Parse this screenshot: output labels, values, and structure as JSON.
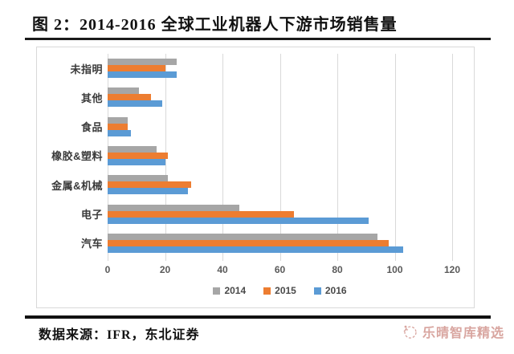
{
  "title": {
    "text": "图 2：2014-2016 全球工业机器人下游市场销售量"
  },
  "chart_data": {
    "type": "bar",
    "orientation": "horizontal",
    "title": "2014-2016 全球工业机器人下游市场销售量",
    "categories": [
      "未指明",
      "其他",
      "食品",
      "橡胶&塑料",
      "金属&机械",
      "电子",
      "汽车"
    ],
    "series": [
      {
        "name": "2014",
        "color": "#A6A6A6",
        "values": [
          24,
          11,
          7,
          17,
          21,
          46,
          94
        ]
      },
      {
        "name": "2015",
        "color": "#ED7D31",
        "values": [
          20,
          15,
          7,
          21,
          29,
          65,
          98
        ]
      },
      {
        "name": "2016",
        "color": "#5B9BD5",
        "values": [
          24,
          19,
          8,
          20,
          28,
          91,
          103
        ]
      }
    ],
    "xlim": [
      0,
      120
    ],
    "xticks": [
      0,
      20,
      40,
      60,
      80,
      100,
      120
    ],
    "grid": true,
    "legend_position": "bottom-center"
  },
  "footer": {
    "source": "数据来源：IFR，东北证券",
    "watermark": "乐晴智库精选"
  },
  "colors": {
    "grid": "#D9D9D9",
    "axis_text": "#595959",
    "category_text": "#3A3A3A",
    "title_rule": "#1A1A1A",
    "watermark": "#CC8880"
  }
}
